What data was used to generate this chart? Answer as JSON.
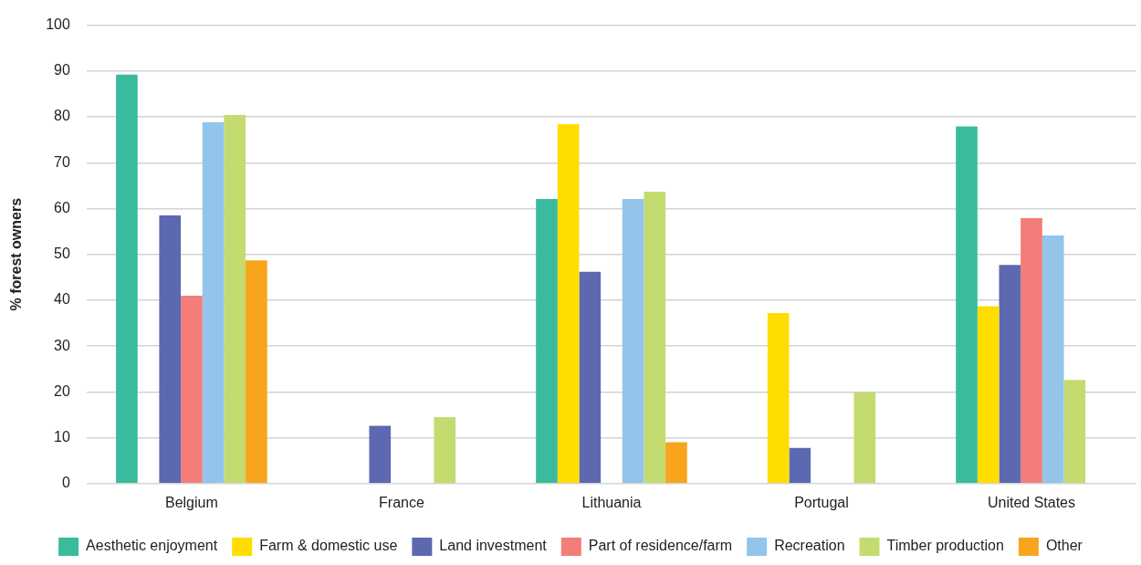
{
  "chart_data": {
    "type": "bar",
    "ylabel": "% forest owners",
    "categories": [
      "Belgium",
      "France",
      "Lithuania",
      "Portugal",
      "United States"
    ],
    "series": [
      {
        "name": "Aesthetic enjoyment",
        "color": "#3abb9d",
        "values": [
          89.2,
          null,
          62.1,
          null,
          77.9
        ]
      },
      {
        "name": "Farm & domestic use",
        "color": "#ffdd00",
        "values": [
          null,
          null,
          78.4,
          37.2,
          38.7
        ]
      },
      {
        "name": "Land investment",
        "color": "#5c69b0",
        "values": [
          58.5,
          12.6,
          46.2,
          7.8,
          47.7
        ]
      },
      {
        "name": "Part of residence/farm",
        "color": "#f27d79",
        "values": [
          41.0,
          null,
          null,
          null,
          57.9
        ]
      },
      {
        "name": "Recreation",
        "color": "#93c5ea",
        "values": [
          78.8,
          null,
          62.1,
          null,
          54.1
        ]
      },
      {
        "name": "Timber production",
        "color": "#c4db6f",
        "values": [
          80.4,
          14.5,
          63.7,
          19.9,
          22.6
        ]
      },
      {
        "name": "Other",
        "color": "#f8a51d",
        "values": [
          48.7,
          null,
          9.0,
          null,
          null
        ]
      }
    ],
    "ylim": [
      0,
      100
    ],
    "yticks": [
      0,
      10,
      20,
      30,
      40,
      50,
      60,
      70,
      80,
      90,
      100
    ],
    "grid": "y",
    "legend": "bottom"
  }
}
